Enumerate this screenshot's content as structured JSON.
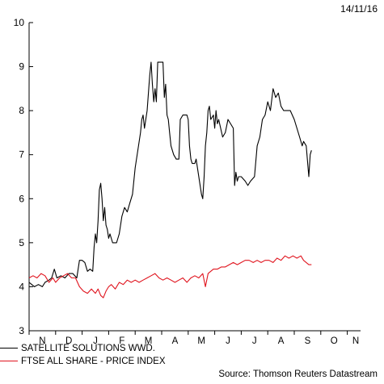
{
  "date_label": "14/11/16",
  "source_label": "Source: Thomson Reuters Datastream",
  "chart_data": {
    "type": "line",
    "title": "",
    "xlabel": "",
    "ylabel": "",
    "ylim": [
      3,
      10
    ],
    "yticks": [
      3,
      4,
      5,
      6,
      7,
      8,
      9,
      10
    ],
    "xlim": [
      0,
      12.5
    ],
    "x_tick_labels": [
      "N",
      "D",
      "J",
      "F",
      "M",
      "A",
      "M",
      "J",
      "J",
      "A",
      "S",
      "O",
      "N"
    ],
    "grid": false,
    "legend_position": "bottom-left",
    "series": [
      {
        "name": "SATELLITE SOLUTIONS WWD.",
        "color": "#000000",
        "points": [
          [
            0.0,
            4.1
          ],
          [
            0.1,
            4.05
          ],
          [
            0.2,
            4.0
          ],
          [
            0.35,
            4.05
          ],
          [
            0.5,
            4.0
          ],
          [
            0.6,
            4.1
          ],
          [
            0.75,
            4.15
          ],
          [
            0.85,
            4.2
          ],
          [
            0.95,
            4.4
          ],
          [
            1.05,
            4.2
          ],
          [
            1.2,
            4.25
          ],
          [
            1.35,
            4.2
          ],
          [
            1.5,
            4.3
          ],
          [
            1.65,
            4.3
          ],
          [
            1.8,
            4.2
          ],
          [
            1.9,
            4.6
          ],
          [
            2.0,
            4.6
          ],
          [
            2.1,
            4.55
          ],
          [
            2.2,
            4.35
          ],
          [
            2.3,
            4.4
          ],
          [
            2.4,
            4.35
          ],
          [
            2.45,
            4.9
          ],
          [
            2.5,
            5.2
          ],
          [
            2.55,
            5.0
          ],
          [
            2.6,
            5.5
          ],
          [
            2.65,
            6.2
          ],
          [
            2.7,
            6.35
          ],
          [
            2.75,
            6.0
          ],
          [
            2.8,
            5.5
          ],
          [
            2.85,
            5.8
          ],
          [
            2.9,
            5.4
          ],
          [
            2.95,
            5.3
          ],
          [
            3.0,
            5.1
          ],
          [
            3.05,
            5.2
          ],
          [
            3.15,
            5.0
          ],
          [
            3.3,
            5.0
          ],
          [
            3.4,
            5.2
          ],
          [
            3.5,
            5.6
          ],
          [
            3.6,
            5.8
          ],
          [
            3.7,
            5.7
          ],
          [
            3.8,
            5.9
          ],
          [
            3.9,
            6.1
          ],
          [
            4.0,
            6.7
          ],
          [
            4.1,
            7.1
          ],
          [
            4.2,
            7.5
          ],
          [
            4.25,
            7.8
          ],
          [
            4.3,
            7.9
          ],
          [
            4.35,
            7.6
          ],
          [
            4.45,
            8.0
          ],
          [
            4.55,
            8.8
          ],
          [
            4.6,
            9.1
          ],
          [
            4.65,
            8.6
          ],
          [
            4.7,
            8.2
          ],
          [
            4.75,
            8.5
          ],
          [
            4.8,
            8.2
          ],
          [
            4.85,
            9.1
          ],
          [
            5.05,
            9.1
          ],
          [
            5.1,
            8.3
          ],
          [
            5.15,
            8.6
          ],
          [
            5.2,
            7.9
          ],
          [
            5.25,
            7.8
          ],
          [
            5.3,
            7.5
          ],
          [
            5.35,
            7.2
          ],
          [
            5.45,
            7.0
          ],
          [
            5.55,
            6.9
          ],
          [
            5.65,
            6.9
          ],
          [
            5.7,
            7.8
          ],
          [
            5.8,
            7.9
          ],
          [
            5.95,
            7.9
          ],
          [
            6.0,
            7.8
          ],
          [
            6.05,
            7.2
          ],
          [
            6.1,
            6.9
          ],
          [
            6.15,
            6.8
          ],
          [
            6.25,
            6.8
          ],
          [
            6.3,
            6.9
          ],
          [
            6.4,
            6.5
          ],
          [
            6.5,
            6.1
          ],
          [
            6.55,
            6.0
          ],
          [
            6.6,
            6.5
          ],
          [
            6.65,
            7.2
          ],
          [
            6.7,
            7.5
          ],
          [
            6.75,
            8.0
          ],
          [
            6.8,
            8.1
          ],
          [
            6.85,
            7.8
          ],
          [
            6.95,
            7.9
          ],
          [
            7.0,
            7.6
          ],
          [
            7.05,
            8.0
          ],
          [
            7.1,
            7.7
          ],
          [
            7.15,
            7.8
          ],
          [
            7.3,
            7.4
          ],
          [
            7.4,
            7.5
          ],
          [
            7.5,
            7.8
          ],
          [
            7.6,
            7.7
          ],
          [
            7.7,
            7.6
          ],
          [
            7.75,
            6.3
          ],
          [
            7.8,
            6.6
          ],
          [
            7.85,
            6.4
          ],
          [
            7.9,
            6.5
          ],
          [
            8.0,
            6.5
          ],
          [
            8.15,
            6.4
          ],
          [
            8.25,
            6.3
          ],
          [
            8.35,
            6.4
          ],
          [
            8.5,
            6.5
          ],
          [
            8.6,
            7.2
          ],
          [
            8.7,
            7.4
          ],
          [
            8.8,
            7.8
          ],
          [
            8.9,
            7.9
          ],
          [
            9.0,
            8.2
          ],
          [
            9.1,
            8.0
          ],
          [
            9.2,
            8.5
          ],
          [
            9.3,
            8.3
          ],
          [
            9.4,
            8.4
          ],
          [
            9.5,
            8.1
          ],
          [
            9.6,
            8.0
          ],
          [
            9.7,
            8.0
          ],
          [
            9.85,
            8.0
          ],
          [
            10.0,
            7.8
          ],
          [
            10.1,
            7.6
          ],
          [
            10.2,
            7.4
          ],
          [
            10.3,
            7.2
          ],
          [
            10.35,
            7.3
          ],
          [
            10.45,
            7.2
          ],
          [
            10.55,
            6.5
          ],
          [
            10.6,
            7.0
          ],
          [
            10.65,
            7.1
          ]
        ]
      },
      {
        "name": "FTSE ALL SHARE - PRICE INDEX",
        "color": "#e0141e",
        "points": [
          [
            0.0,
            4.2
          ],
          [
            0.15,
            4.25
          ],
          [
            0.3,
            4.2
          ],
          [
            0.45,
            4.3
          ],
          [
            0.6,
            4.25
          ],
          [
            0.75,
            4.1
          ],
          [
            0.9,
            4.2
          ],
          [
            1.0,
            4.1
          ],
          [
            1.15,
            4.2
          ],
          [
            1.3,
            4.25
          ],
          [
            1.45,
            4.3
          ],
          [
            1.6,
            4.2
          ],
          [
            1.75,
            4.2
          ],
          [
            1.9,
            4.0
          ],
          [
            2.05,
            3.9
          ],
          [
            2.2,
            3.85
          ],
          [
            2.35,
            3.95
          ],
          [
            2.5,
            3.85
          ],
          [
            2.6,
            3.95
          ],
          [
            2.7,
            3.8
          ],
          [
            2.8,
            3.75
          ],
          [
            2.9,
            3.9
          ],
          [
            3.0,
            4.0
          ],
          [
            3.1,
            4.05
          ],
          [
            3.25,
            3.95
          ],
          [
            3.4,
            4.1
          ],
          [
            3.55,
            4.05
          ],
          [
            3.7,
            4.15
          ],
          [
            3.85,
            4.1
          ],
          [
            4.0,
            4.15
          ],
          [
            4.15,
            4.1
          ],
          [
            4.3,
            4.15
          ],
          [
            4.45,
            4.2
          ],
          [
            4.6,
            4.25
          ],
          [
            4.75,
            4.3
          ],
          [
            4.9,
            4.2
          ],
          [
            5.05,
            4.15
          ],
          [
            5.2,
            4.2
          ],
          [
            5.35,
            4.15
          ],
          [
            5.5,
            4.1
          ],
          [
            5.65,
            4.15
          ],
          [
            5.8,
            4.2
          ],
          [
            5.95,
            4.1
          ],
          [
            6.1,
            4.2
          ],
          [
            6.25,
            4.25
          ],
          [
            6.4,
            4.2
          ],
          [
            6.55,
            4.3
          ],
          [
            6.65,
            4.0
          ],
          [
            6.75,
            4.3
          ],
          [
            6.85,
            4.35
          ],
          [
            6.95,
            4.4
          ],
          [
            7.1,
            4.4
          ],
          [
            7.25,
            4.45
          ],
          [
            7.4,
            4.45
          ],
          [
            7.55,
            4.5
          ],
          [
            7.7,
            4.55
          ],
          [
            7.85,
            4.5
          ],
          [
            8.0,
            4.55
          ],
          [
            8.15,
            4.6
          ],
          [
            8.3,
            4.6
          ],
          [
            8.45,
            4.55
          ],
          [
            8.6,
            4.6
          ],
          [
            8.75,
            4.55
          ],
          [
            8.9,
            4.6
          ],
          [
            9.05,
            4.6
          ],
          [
            9.2,
            4.55
          ],
          [
            9.35,
            4.65
          ],
          [
            9.5,
            4.6
          ],
          [
            9.65,
            4.7
          ],
          [
            9.8,
            4.65
          ],
          [
            9.95,
            4.7
          ],
          [
            10.1,
            4.65
          ],
          [
            10.25,
            4.7
          ],
          [
            10.35,
            4.6
          ],
          [
            10.45,
            4.55
          ],
          [
            10.55,
            4.5
          ],
          [
            10.65,
            4.5
          ]
        ]
      }
    ]
  }
}
